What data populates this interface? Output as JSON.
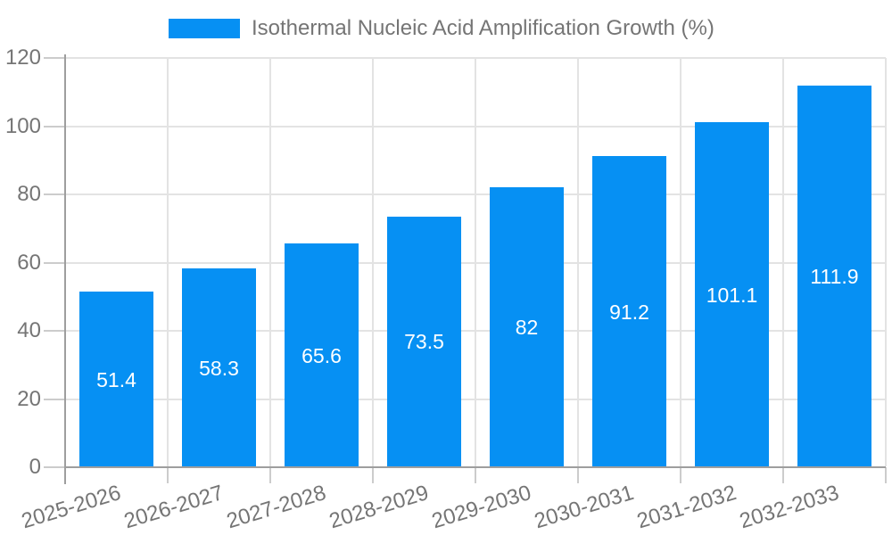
{
  "chart_data": {
    "type": "bar",
    "title": "Isothermal Nucleic Acid Amplification Growth (%)",
    "legend": {
      "position": "top",
      "label": "Isothermal Nucleic Acid Amplification Growth (%)"
    },
    "categories": [
      "2025-2026",
      "2026-2027",
      "2027-2028",
      "2028-2029",
      "2029-2030",
      "2030-2031",
      "2031-2032",
      "2032-2033"
    ],
    "series": [
      {
        "name": "Isothermal Nucleic Acid Amplification Growth (%)",
        "values": [
          51.4,
          58.3,
          65.6,
          73.5,
          82,
          91.2,
          101.1,
          111.9
        ]
      }
    ],
    "value_labels": [
      "51.4",
      "58.3",
      "65.6",
      "73.5",
      "82",
      "91.2",
      "101.1",
      "111.9"
    ],
    "xlabel": "",
    "ylabel": "",
    "y_ticks": [
      0,
      20,
      40,
      60,
      80,
      100,
      120
    ],
    "ylim": [
      0,
      120
    ],
    "grid": true,
    "colors": {
      "bar": "#0690f3",
      "axis": "#9e9e9e",
      "grid": "#e3e3e3",
      "tick": "#cccccc",
      "text": "#757575",
      "value_text": "#ffffff",
      "background": "#ffffff"
    }
  }
}
